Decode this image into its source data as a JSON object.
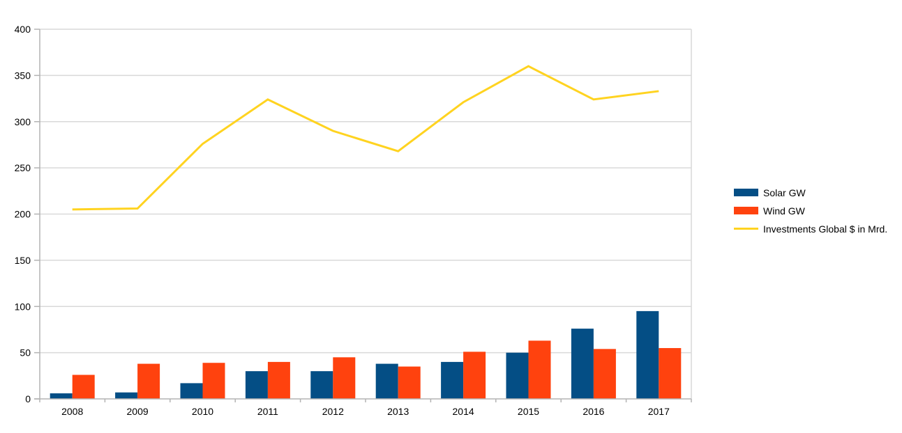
{
  "chart_data": {
    "type": "combo",
    "title": "",
    "xlabel": "",
    "ylabel": "",
    "categories": [
      "2008",
      "2009",
      "2010",
      "2011",
      "2012",
      "2013",
      "2014",
      "2015",
      "2016",
      "2017"
    ],
    "series": [
      {
        "name": "Solar GW",
        "type": "bar",
        "color": "#044E85",
        "values": [
          6,
          7,
          17,
          30,
          30,
          38,
          40,
          50,
          76,
          95
        ]
      },
      {
        "name": "Wind GW",
        "type": "bar",
        "color": "#FF420E",
        "values": [
          26,
          38,
          39,
          40,
          45,
          35,
          51,
          63,
          54,
          55
        ]
      },
      {
        "name": "Investments Global $ in Mrd.",
        "type": "line",
        "color": "#FFD320",
        "values": [
          205,
          206,
          276,
          324,
          290,
          268,
          321,
          360,
          324,
          333
        ]
      }
    ],
    "ylim": [
      0,
      400
    ],
    "ytick_step": 50,
    "y_ticks": [
      0,
      50,
      100,
      150,
      200,
      250,
      300,
      350,
      400
    ],
    "grid": true,
    "legend_position": "right",
    "colors": {
      "grid": "#d9d9d9",
      "axis": "#b3b3b3",
      "text": "#000000",
      "background": "#ffffff"
    }
  }
}
